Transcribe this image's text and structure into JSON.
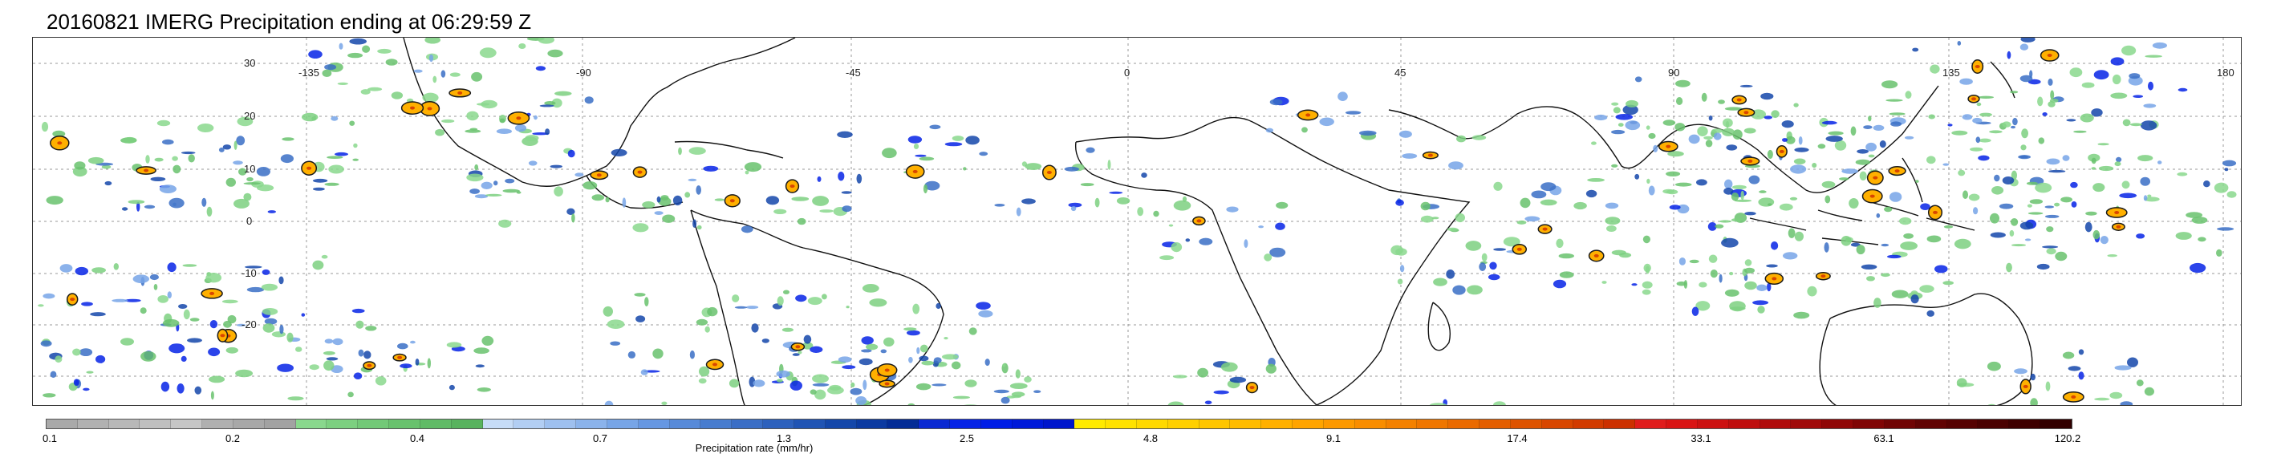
{
  "title": "20160821 IMERG Precipitation ending at 06:29:59 Z",
  "map": {
    "lon_labels": [
      "-135",
      "-90",
      "-45",
      "0",
      "45",
      "90",
      "135",
      "180"
    ],
    "lat_labels": [
      "30",
      "20",
      "10",
      "0",
      "-10",
      "-20"
    ]
  },
  "colorbar": {
    "label": "Precipitation rate (mm/hr)",
    "tick_labels": [
      "0.1",
      "0.2",
      "0.4",
      "0.7",
      "1.3",
      "2.5",
      "4.8",
      "9.1",
      "17.4",
      "33.1",
      "63.1",
      "120.2"
    ],
    "colors": [
      "#a9a9a9",
      "#b1b1b1",
      "#b8b8b8",
      "#bfbfbf",
      "#c6c6c6",
      "#b0b0b0",
      "#a8a8a8",
      "#a2a2a2",
      "#89d88d",
      "#7cd080",
      "#72c977",
      "#68c26d",
      "#60bb66",
      "#58b35e",
      "#c6dcf7",
      "#b2cef3",
      "#9ec0ef",
      "#8bb3eb",
      "#77a5e7",
      "#6697e2",
      "#578ad9",
      "#477ccf",
      "#3a6ec6",
      "#2d61bd",
      "#2054b4",
      "#1447aa",
      "#0b3aa1",
      "#032c96",
      "#0a29d2",
      "#0623e6",
      "#001de6",
      "#001ad9",
      "#0016cc",
      "#ffea00",
      "#ffe200",
      "#ffd900",
      "#ffd000",
      "#ffc600",
      "#ffbc00",
      "#ffb000",
      "#ffa400",
      "#fd9900",
      "#f98d00",
      "#f48100",
      "#ef7600",
      "#ea6a00",
      "#e45e00",
      "#de5300",
      "#d84600",
      "#d23b00",
      "#cc3000",
      "#e01c1c",
      "#d91414",
      "#cc1111",
      "#bf0e0e",
      "#b00b0b",
      "#a00909",
      "#900707",
      "#800505",
      "#700404",
      "#610303",
      "#560202",
      "#4a0101",
      "#3e0000",
      "#320000"
    ]
  }
}
